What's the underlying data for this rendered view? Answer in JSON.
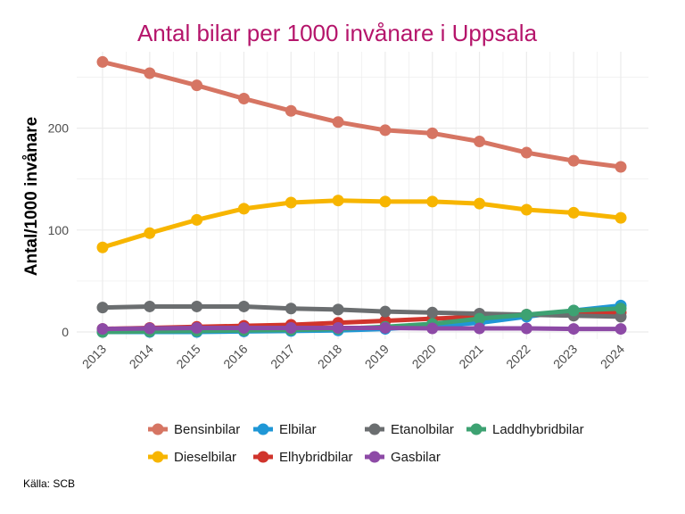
{
  "chart_data": {
    "type": "line",
    "title": "Antal bilar per 1000 invånare i Uppsala",
    "xlabel": "",
    "ylabel": "Antal/1000 invånare",
    "x": [
      "2013",
      "2014",
      "2015",
      "2016",
      "2017",
      "2018",
      "2019",
      "2020",
      "2021",
      "2022",
      "2023",
      "2024"
    ],
    "ylim": [
      -7,
      275
    ],
    "yticks": [
      0,
      100,
      200
    ],
    "grid": true,
    "legend_position": "bottom",
    "series": [
      {
        "name": "Bensinbilar",
        "color": "#D67563",
        "values": [
          265,
          254,
          242,
          229,
          217,
          206,
          198,
          195,
          187,
          176,
          168,
          162
        ]
      },
      {
        "name": "Dieselbilar",
        "color": "#F7B500",
        "values": [
          83,
          97,
          110,
          121,
          127,
          129,
          128,
          128,
          126,
          120,
          117,
          112
        ]
      },
      {
        "name": "Elbilar",
        "color": "#1F97D6",
        "values": [
          0,
          0,
          0,
          0.5,
          1,
          1.5,
          3,
          6,
          9,
          15,
          21,
          26
        ]
      },
      {
        "name": "Elhybridbilar",
        "color": "#D0342C",
        "values": [
          3,
          4,
          5,
          6,
          7,
          9,
          11,
          13,
          15,
          17,
          18,
          19
        ]
      },
      {
        "name": "Etanolbilar",
        "color": "#6B6E70",
        "values": [
          24,
          25,
          25,
          25,
          23,
          22,
          20,
          19,
          18,
          17,
          16,
          15
        ]
      },
      {
        "name": "Gasbilar",
        "color": "#8D4AA6",
        "values": [
          3,
          3.5,
          4,
          4,
          4,
          4,
          4,
          3.5,
          3.5,
          3.5,
          3,
          3
        ]
      },
      {
        "name": "Laddhybridbilar",
        "color": "#3DA272",
        "values": [
          0,
          0.5,
          1,
          1.5,
          2,
          3,
          5,
          8,
          13,
          17,
          21,
          23
        ]
      }
    ],
    "legend_order": [
      "Bensinbilar",
      "Elbilar",
      "Etanolbilar",
      "Laddhybridbilar",
      "Dieselbilar",
      "Elhybridbilar",
      "Gasbilar"
    ],
    "draw_order": [
      "Bensinbilar",
      "Dieselbilar",
      "Elbilar",
      "Elhybridbilar",
      "Etanolbilar",
      "Laddhybridbilar",
      "Gasbilar"
    ],
    "title_color": "#B5156B",
    "grid_color": "#EBEBEB"
  },
  "source": "Källa: SCB"
}
